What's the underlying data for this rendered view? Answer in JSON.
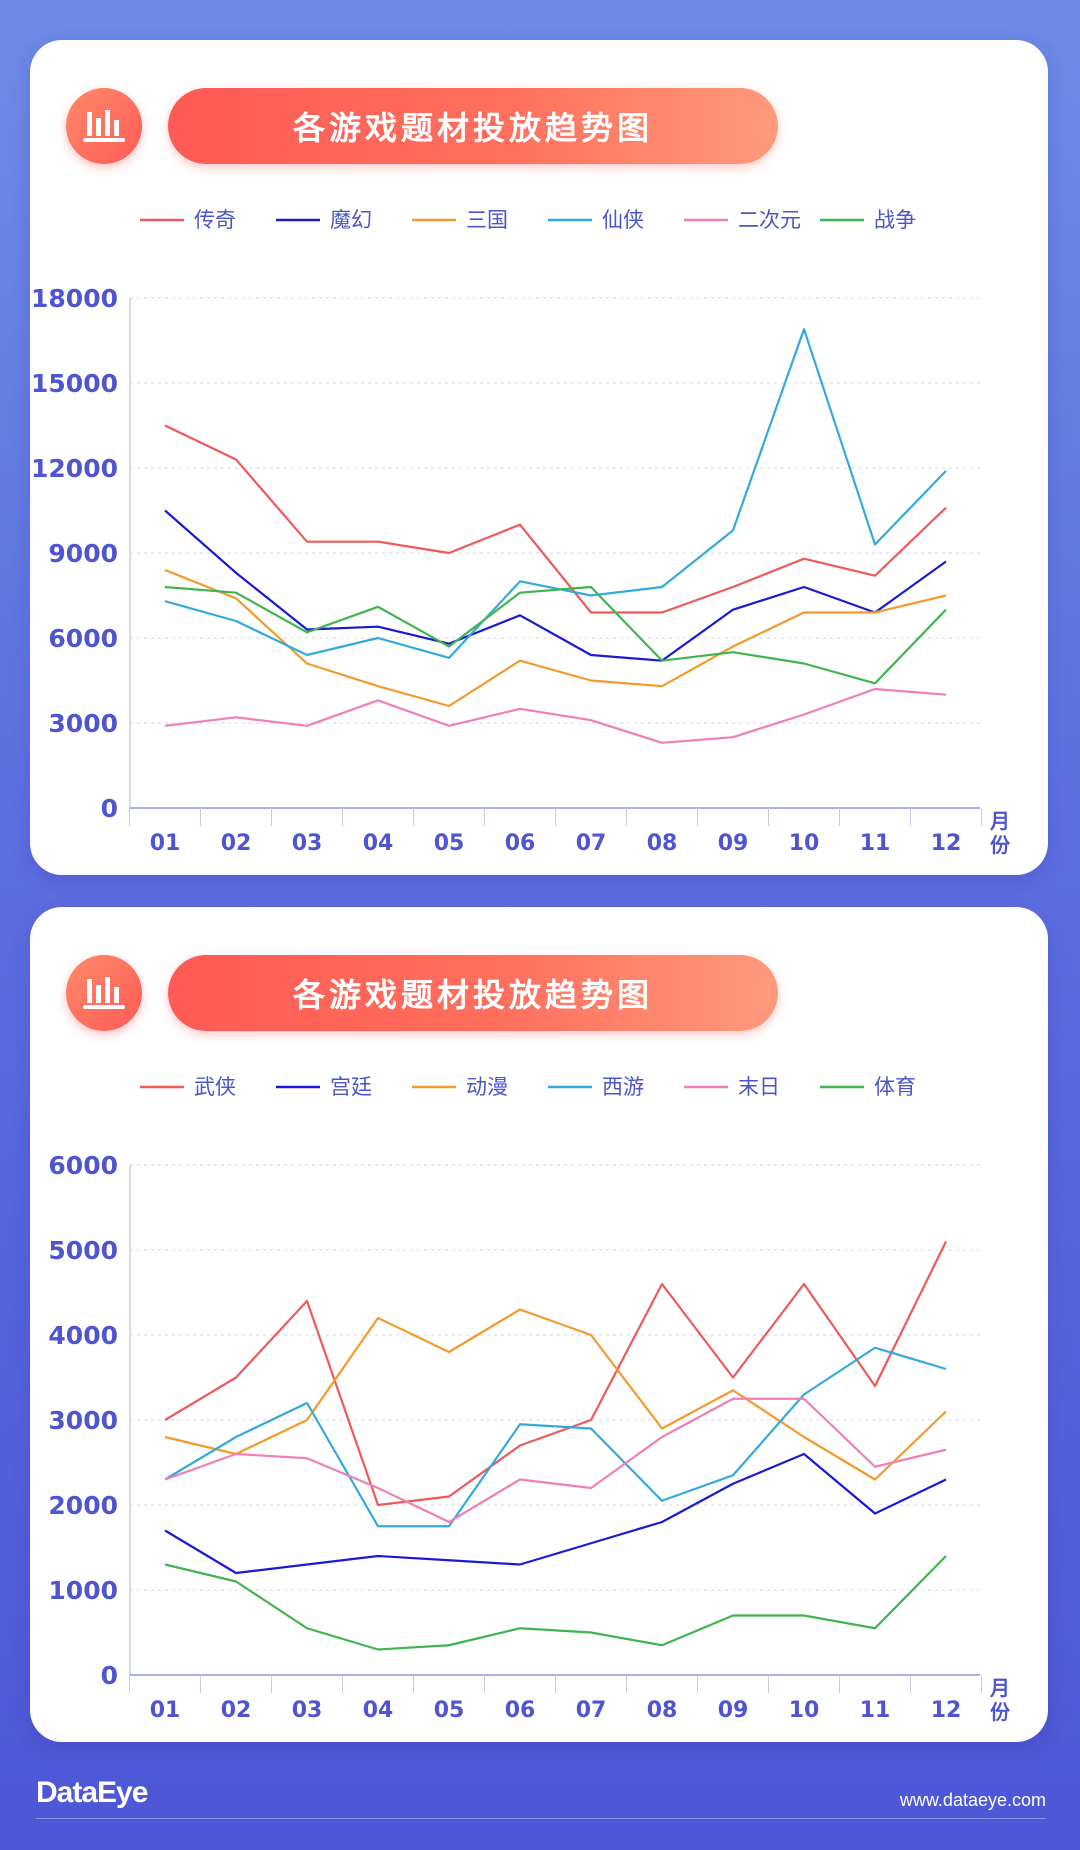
{
  "footer": {
    "logo": "DataEye",
    "url": "www.dataeye.com"
  },
  "chart_data": [
    {
      "type": "line",
      "title": "各游戏题材投放趋势图",
      "xlabel": "月份",
      "ylabel": "",
      "ylim": [
        0,
        18000
      ],
      "yticks": [
        0,
        3000,
        6000,
        9000,
        12000,
        15000,
        18000
      ],
      "categories": [
        "01",
        "02",
        "03",
        "04",
        "05",
        "06",
        "07",
        "08",
        "09",
        "10",
        "11",
        "12"
      ],
      "grid": "horizontal-dotted",
      "legend": "top",
      "series": [
        {
          "name": "传奇",
          "color": "#f0595a",
          "values": [
            13500,
            12300,
            9400,
            9400,
            9000,
            10000,
            6900,
            6900,
            7800,
            8800,
            8200,
            10600
          ]
        },
        {
          "name": "魔幻",
          "color": "#1a1ad6",
          "values": [
            10500,
            8300,
            6300,
            6400,
            5800,
            6800,
            5400,
            5200,
            7000,
            7800,
            6900,
            8700
          ]
        },
        {
          "name": "三国",
          "color": "#f39a2c",
          "values": [
            8400,
            7400,
            5100,
            4300,
            3600,
            5200,
            4500,
            4300,
            5700,
            6900,
            6900,
            7500
          ]
        },
        {
          "name": "仙侠",
          "color": "#33aadd",
          "values": [
            7300,
            6600,
            5400,
            6000,
            5300,
            8000,
            7500,
            7800,
            9800,
            16900,
            9300,
            11900
          ]
        },
        {
          "name": "二次元",
          "color": "#ef7fb5",
          "values": [
            2900,
            3200,
            2900,
            3800,
            2900,
            3500,
            3100,
            2300,
            2500,
            3300,
            4200,
            4000
          ]
        },
        {
          "name": "战争",
          "color": "#3fb44f",
          "values": [
            7800,
            7600,
            6200,
            7100,
            5700,
            7600,
            7800,
            5200,
            5500,
            5100,
            4400,
            7000
          ]
        }
      ]
    },
    {
      "type": "line",
      "title": "各游戏题材投放趋势图",
      "xlabel": "月份",
      "ylabel": "",
      "ylim": [
        0,
        6000
      ],
      "yticks": [
        0,
        1000,
        2000,
        3000,
        4000,
        5000,
        6000
      ],
      "categories": [
        "01",
        "02",
        "03",
        "04",
        "05",
        "06",
        "07",
        "08",
        "09",
        "10",
        "11",
        "12"
      ],
      "grid": "horizontal-dotted",
      "legend": "top",
      "series": [
        {
          "name": "武侠",
          "color": "#f0595a",
          "values": [
            3000,
            3500,
            4400,
            2000,
            2100,
            2700,
            3000,
            4600,
            3500,
            4600,
            3400,
            5100
          ]
        },
        {
          "name": "宫廷",
          "color": "#1a1ad6",
          "values": [
            1700,
            1200,
            1300,
            1400,
            1350,
            1300,
            1550,
            1800,
            2250,
            2600,
            1900,
            2300
          ]
        },
        {
          "name": "动漫",
          "color": "#f39a2c",
          "values": [
            2800,
            2600,
            3000,
            4200,
            3800,
            4300,
            4000,
            2900,
            3350,
            2800,
            2300,
            3100
          ]
        },
        {
          "name": "西游",
          "color": "#33aadd",
          "values": [
            2300,
            2800,
            3200,
            1750,
            1750,
            2950,
            2900,
            2050,
            2350,
            3300,
            3850,
            3600
          ]
        },
        {
          "name": "末日",
          "color": "#ef7fb5",
          "values": [
            2300,
            2600,
            2550,
            2200,
            1800,
            2300,
            2200,
            2800,
            3250,
            3250,
            2450,
            2650
          ]
        },
        {
          "name": "体育",
          "color": "#3fb44f",
          "values": [
            1300,
            1100,
            550,
            300,
            350,
            550,
            500,
            350,
            700,
            700,
            550,
            1400
          ]
        }
      ]
    }
  ]
}
